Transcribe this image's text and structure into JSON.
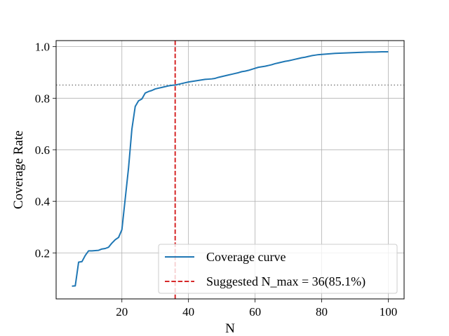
{
  "chart_data": {
    "type": "line",
    "xlabel": "N",
    "ylabel": "Coverage Rate",
    "xlim": [
      0.25,
      104.75
    ],
    "ylim": [
      0.0215,
      1.0235
    ],
    "x_ticks": [
      20,
      40,
      60,
      80,
      100
    ],
    "y_ticks": [
      0.2,
      0.4,
      0.6,
      0.8,
      1.0
    ],
    "x_tick_labels": [
      "20",
      "40",
      "60",
      "80",
      "100"
    ],
    "y_tick_labels": [
      "0.2",
      "0.4",
      "0.6",
      "0.8",
      "1.0"
    ],
    "grid": true,
    "legend": {
      "position": "lower-right",
      "entries": [
        {
          "label": "Coverage curve",
          "style": "solid",
          "color": "#1f77b4"
        },
        {
          "label": "Suggested N_max = 36(85.1%)",
          "style": "dashed",
          "color": "#d62728"
        }
      ]
    },
    "series": [
      {
        "name": "Coverage curve",
        "color": "#1f77b4",
        "x": [
          5,
          6,
          7,
          8,
          9,
          10,
          11,
          12,
          13,
          14,
          15,
          16,
          17,
          18,
          19,
          20,
          21,
          22,
          23,
          24,
          25,
          26,
          27,
          28,
          29,
          30,
          31,
          32,
          33,
          34,
          35,
          36,
          37,
          38,
          39,
          40,
          41,
          42,
          43,
          44,
          45,
          46,
          47,
          48,
          49,
          50,
          51,
          52,
          53,
          54,
          55,
          56,
          57,
          58,
          59,
          60,
          61,
          62,
          63,
          64,
          65,
          66,
          67,
          68,
          69,
          70,
          71,
          72,
          73,
          74,
          75,
          76,
          77,
          78,
          79,
          80,
          82,
          84,
          86,
          88,
          90,
          92,
          94,
          96,
          98,
          100
        ],
        "y": [
          0.071,
          0.072,
          0.164,
          0.166,
          0.19,
          0.208,
          0.208,
          0.209,
          0.21,
          0.215,
          0.217,
          0.222,
          0.238,
          0.251,
          0.26,
          0.29,
          0.41,
          0.53,
          0.68,
          0.768,
          0.79,
          0.797,
          0.82,
          0.826,
          0.83,
          0.836,
          0.839,
          0.842,
          0.845,
          0.848,
          0.85,
          0.851,
          0.854,
          0.857,
          0.86,
          0.863,
          0.865,
          0.867,
          0.869,
          0.871,
          0.873,
          0.874,
          0.875,
          0.877,
          0.881,
          0.884,
          0.887,
          0.89,
          0.893,
          0.896,
          0.899,
          0.903,
          0.905,
          0.908,
          0.912,
          0.916,
          0.92,
          0.922,
          0.924,
          0.927,
          0.93,
          0.934,
          0.937,
          0.94,
          0.943,
          0.945,
          0.948,
          0.951,
          0.954,
          0.957,
          0.959,
          0.962,
          0.965,
          0.967,
          0.969,
          0.97,
          0.972,
          0.974,
          0.975,
          0.976,
          0.977,
          0.978,
          0.979,
          0.979,
          0.98,
          0.98
        ]
      }
    ],
    "reference_lines": [
      {
        "orientation": "vertical",
        "value": 36,
        "style": "dashed",
        "color": "#d62728"
      },
      {
        "orientation": "horizontal",
        "value": 0.851,
        "style": "dotted",
        "color": "#808080"
      }
    ]
  }
}
